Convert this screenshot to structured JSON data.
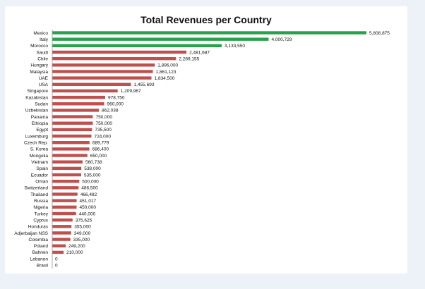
{
  "colors": {
    "top_bar": "#27a14a",
    "other_bar": "#c0504d",
    "axis": "#999999",
    "panel_background": "#ffffff",
    "page_background": "#edf2f8"
  },
  "chart_data": {
    "type": "bar",
    "orientation": "horizontal",
    "title": "Total Revenues per Country",
    "xlabel": "",
    "ylabel": "",
    "xlim": [
      0,
      5808875
    ],
    "grid": false,
    "legend": "none",
    "data_labels": true,
    "highlight_top_n": 3,
    "categories": [
      "Mexico",
      "Italy",
      "Morocco",
      "Saudi",
      "Chile",
      "Hungary",
      "Malaysia",
      "UAE",
      "USA",
      "Singapore",
      "Kazakistan",
      "Sudan",
      "Uzbekistan",
      "Panama",
      "Ethiopia",
      "Egypt",
      "Luxemburg",
      "Czech Rep.",
      "S. Korea",
      "Mongolia",
      "Vietnam",
      "Spain",
      "Ecuador",
      "Oman",
      "Switzerland",
      "Thailand",
      "Russia",
      "Nigeria",
      "Turkey",
      "Cyprus",
      "Honduras",
      "Adjerbaijan NSS",
      "Colombia",
      "Poland",
      "Bahrein",
      "Lebanon",
      "Brasil"
    ],
    "values": [
      5808875,
      4000729,
      3133550,
      2481687,
      2289155,
      1896000,
      1861123,
      1834500,
      1455693,
      1209967,
      978750,
      960000,
      862038,
      750000,
      750000,
      735500,
      724000,
      689779,
      686400,
      650000,
      560738,
      538000,
      535000,
      500000,
      486500,
      466482,
      451017,
      450000,
      440000,
      375625,
      355000,
      349000,
      335000,
      249200,
      210000,
      0,
      0
    ],
    "value_labels": [
      "5,808,875",
      "4,000,729",
      "3,133,550",
      "2,481,687",
      "2,289,155",
      "1,896,000",
      "1,861,123",
      "1,834,500",
      "1,455,693",
      "1,209,967",
      "978,750",
      "960,000",
      "862,038",
      "750,000",
      "750,000",
      "735,500",
      "724,000",
      "689,779",
      "686,400",
      "650,000",
      "560,738",
      "538,000",
      "535,000",
      "500,000",
      "486,500",
      "466,482",
      "451,017",
      "450,000",
      "440,000",
      "375,625",
      "355,000",
      "349,000",
      "335,000",
      "249,200",
      "210,000",
      "0",
      "0"
    ]
  }
}
